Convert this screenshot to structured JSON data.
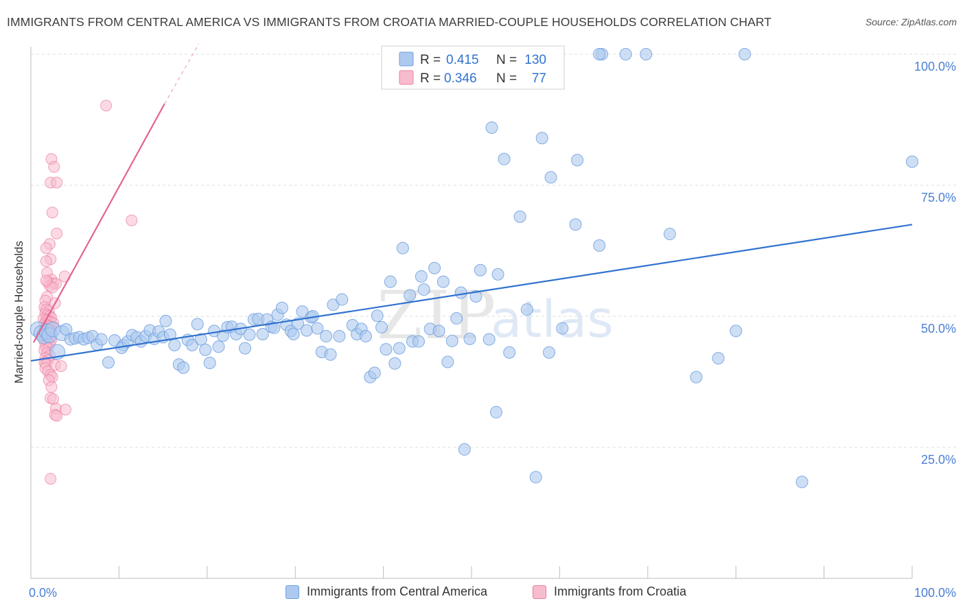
{
  "header": {
    "title": "IMMIGRANTS FROM CENTRAL AMERICA VS IMMIGRANTS FROM CROATIA MARRIED-COUPLE HOUSEHOLDS CORRELATION CHART",
    "source": "Source: ZipAtlas.com"
  },
  "watermark": {
    "zip": "ZIP",
    "atlas": "atlas"
  },
  "colors": {
    "blue_fill": "#aec9ef",
    "blue_stroke": "#6e9fe0",
    "blue_line": "#2f72d0",
    "pink_fill": "#f7bccd",
    "pink_stroke": "#ec7ea0",
    "pink_line": "#e4638f",
    "axis_label": "#4a7fd4",
    "grid": "#dcdcdc"
  },
  "legend_top": {
    "rows": [
      {
        "r_label": "R =",
        "r_value": "0.415",
        "n_label": "N =",
        "n_value": "130",
        "series": "blue"
      },
      {
        "r_label": "R =",
        "r_value": "0.346",
        "n_label": "N =",
        "n_value": "77",
        "series": "pink"
      }
    ]
  },
  "legend_bottom": {
    "items": [
      {
        "label": "Immigrants from Central America",
        "series": "blue"
      },
      {
        "label": "Immigrants from Croatia",
        "series": "pink"
      }
    ]
  },
  "chart_data": {
    "type": "scatter",
    "title": "IMMIGRANTS FROM CENTRAL AMERICA VS IMMIGRANTS FROM CROATIA MARRIED-COUPLE HOUSEHOLDS CORRELATION CHART",
    "xlabel": "",
    "ylabel": "Married-couple Households",
    "xlim": [
      0,
      100
    ],
    "ylim": [
      0,
      100
    ],
    "x_tick_labels": [
      "0.0%",
      "100.0%"
    ],
    "y_tick_labels": [
      {
        "value": 100,
        "label": "100.0%"
      },
      {
        "value": 75,
        "label": "75.0%"
      },
      {
        "value": 50,
        "label": "50.0%"
      },
      {
        "value": 25,
        "label": "25.0%"
      }
    ],
    "series": [
      {
        "name": "Immigrants from Central America",
        "color": "blue",
        "R": 0.415,
        "N": 130,
        "trend": {
          "x0": 0.0,
          "y0": 41.5,
          "x1": 100.0,
          "y1": 67.5
        },
        "points": [
          [
            0.8,
            47.5
          ],
          [
            1.2,
            46.8
          ],
          [
            1.5,
            46.2
          ],
          [
            1.8,
            47.1
          ],
          [
            2.1,
            46.4
          ],
          [
            2.5,
            47.5
          ],
          [
            3.0,
            43.2
          ],
          [
            3.5,
            46.8
          ],
          [
            4.0,
            47.5
          ],
          [
            4.5,
            45.6
          ],
          [
            5.0,
            45.8
          ],
          [
            5.5,
            46.0
          ],
          [
            6.0,
            45.6
          ],
          [
            6.5,
            45.9
          ],
          [
            7.0,
            46.2
          ],
          [
            7.5,
            44.6
          ],
          [
            8.0,
            45.6
          ],
          [
            8.8,
            41.2
          ],
          [
            9.5,
            45.4
          ],
          [
            10.5,
            44.5
          ],
          [
            10.3,
            44.0
          ],
          [
            11.0,
            45.2
          ],
          [
            11.5,
            46.4
          ],
          [
            12.0,
            46.0
          ],
          [
            12.5,
            45.2
          ],
          [
            13.0,
            46.2
          ],
          [
            13.5,
            47.3
          ],
          [
            14.0,
            45.7
          ],
          [
            14.5,
            47.1
          ],
          [
            15.0,
            46.0
          ],
          [
            15.3,
            49.1
          ],
          [
            15.8,
            46.5
          ],
          [
            16.3,
            44.5
          ],
          [
            16.8,
            40.8
          ],
          [
            17.3,
            40.2
          ],
          [
            17.8,
            45.5
          ],
          [
            18.3,
            44.5
          ],
          [
            18.9,
            48.5
          ],
          [
            19.3,
            45.6
          ],
          [
            19.8,
            43.6
          ],
          [
            20.3,
            41.1
          ],
          [
            20.8,
            47.2
          ],
          [
            21.3,
            44.2
          ],
          [
            21.8,
            46.3
          ],
          [
            22.3,
            47.9
          ],
          [
            22.8,
            48.0
          ],
          [
            23.3,
            46.6
          ],
          [
            23.8,
            47.6
          ],
          [
            24.3,
            43.9
          ],
          [
            24.8,
            46.5
          ],
          [
            25.3,
            49.4
          ],
          [
            25.8,
            49.5
          ],
          [
            26.3,
            46.6
          ],
          [
            26.8,
            49.4
          ],
          [
            27.3,
            48.0
          ],
          [
            27.6,
            47.8
          ],
          [
            28.0,
            50.3
          ],
          [
            28.5,
            51.6
          ],
          [
            29.0,
            48.4
          ],
          [
            29.5,
            47.2
          ],
          [
            29.8,
            46.6
          ],
          [
            30.3,
            48.6
          ],
          [
            30.8,
            50.9
          ],
          [
            31.3,
            47.3
          ],
          [
            31.8,
            49.8
          ],
          [
            32.0,
            50.0
          ],
          [
            32.5,
            47.7
          ],
          [
            33.0,
            43.2
          ],
          [
            33.5,
            46.2
          ],
          [
            34.0,
            42.7
          ],
          [
            34.3,
            52.2
          ],
          [
            35.3,
            53.2
          ],
          [
            35.0,
            46.2
          ],
          [
            36.5,
            48.3
          ],
          [
            37.0,
            46.6
          ],
          [
            37.5,
            47.6
          ],
          [
            38.0,
            46.2
          ],
          [
            38.5,
            38.4
          ],
          [
            39.0,
            39.2
          ],
          [
            39.3,
            50.1
          ],
          [
            39.8,
            47.9
          ],
          [
            40.3,
            43.7
          ],
          [
            40.8,
            56.6
          ],
          [
            41.3,
            41.0
          ],
          [
            41.8,
            43.9
          ],
          [
            42.2,
            63.0
          ],
          [
            43.0,
            54.0
          ],
          [
            43.3,
            45.2
          ],
          [
            44.0,
            45.2
          ],
          [
            44.3,
            57.6
          ],
          [
            44.6,
            55.1
          ],
          [
            45.3,
            47.6
          ],
          [
            45.8,
            59.2
          ],
          [
            46.3,
            47.2
          ],
          [
            46.8,
            56.6
          ],
          [
            47.3,
            41.3
          ],
          [
            47.8,
            45.3
          ],
          [
            48.3,
            49.6
          ],
          [
            48.8,
            54.5
          ],
          [
            49.2,
            24.6
          ],
          [
            49.8,
            45.7
          ],
          [
            50.5,
            53.8
          ],
          [
            51.0,
            58.8
          ],
          [
            52.0,
            45.6
          ],
          [
            52.3,
            86.0
          ],
          [
            53.0,
            58.0
          ],
          [
            52.8,
            31.7
          ],
          [
            53.7,
            80.0
          ],
          [
            54.3,
            43.1
          ],
          [
            55.5,
            69.0
          ],
          [
            56.3,
            51.3
          ],
          [
            57.3,
            19.3
          ],
          [
            58.0,
            84.0
          ],
          [
            58.8,
            43.1
          ],
          [
            59.0,
            76.5
          ],
          [
            60.3,
            47.7
          ],
          [
            61.8,
            67.5
          ],
          [
            62.0,
            79.8
          ],
          [
            64.5,
            63.5
          ],
          [
            64.8,
            100.0
          ],
          [
            67.5,
            100.0
          ],
          [
            69.8,
            100.0
          ],
          [
            72.5,
            65.7
          ],
          [
            75.5,
            38.4
          ],
          [
            78.0,
            42.0
          ],
          [
            80.0,
            47.2
          ],
          [
            81.0,
            100.0
          ],
          [
            87.5,
            18.4
          ],
          [
            100.0,
            79.5
          ],
          [
            64.5,
            100.0
          ]
        ]
      },
      {
        "name": "Immigrants from Croatia",
        "color": "pink",
        "R": 0.346,
        "N": 77,
        "trend": {
          "x0": 0.0,
          "y0": 45.0,
          "x1": 15.0,
          "y1": 90.5,
          "dashed_to": {
            "x": 18.9,
            "y": 102.0
          }
        },
        "points": [
          [
            7.6,
            90.2
          ],
          [
            1.4,
            80.0
          ],
          [
            1.7,
            78.5
          ],
          [
            1.3,
            75.5
          ],
          [
            2.0,
            75.5
          ],
          [
            10.5,
            68.3
          ],
          [
            1.5,
            69.8
          ],
          [
            2.0,
            65.8
          ],
          [
            1.2,
            63.8
          ],
          [
            0.8,
            63.0
          ],
          [
            1.3,
            60.9
          ],
          [
            0.8,
            60.5
          ],
          [
            0.9,
            58.3
          ],
          [
            2.9,
            57.6
          ],
          [
            1.4,
            57.0
          ],
          [
            1.0,
            56.5
          ],
          [
            1.6,
            56.3
          ],
          [
            1.9,
            56.2
          ],
          [
            1.2,
            55.8
          ],
          [
            1.5,
            55.5
          ],
          [
            0.9,
            53.7
          ],
          [
            0.7,
            53.0
          ],
          [
            1.8,
            52.5
          ],
          [
            0.6,
            51.7
          ],
          [
            0.8,
            51.3
          ],
          [
            1.1,
            51.0
          ],
          [
            0.7,
            50.5
          ],
          [
            0.9,
            50.2
          ],
          [
            1.2,
            50.0
          ],
          [
            1.4,
            49.7
          ],
          [
            0.5,
            49.5
          ],
          [
            0.8,
            49.3
          ],
          [
            1.0,
            49.1
          ],
          [
            1.3,
            48.9
          ],
          [
            1.6,
            48.7
          ],
          [
            0.6,
            48.5
          ],
          [
            0.9,
            48.3
          ],
          [
            1.2,
            48.1
          ],
          [
            1.5,
            47.9
          ],
          [
            0.7,
            47.7
          ],
          [
            1.0,
            47.5
          ],
          [
            1.3,
            47.3
          ],
          [
            0.6,
            47.1
          ],
          [
            0.9,
            46.9
          ],
          [
            1.2,
            46.7
          ],
          [
            0.5,
            46.5
          ],
          [
            0.8,
            46.2
          ],
          [
            1.1,
            45.9
          ],
          [
            1.4,
            45.6
          ],
          [
            0.6,
            45.3
          ],
          [
            0.9,
            45.0
          ],
          [
            1.2,
            44.7
          ],
          [
            0.7,
            44.3
          ],
          [
            1.0,
            43.9
          ],
          [
            0.6,
            43.5
          ],
          [
            0.9,
            43.0
          ],
          [
            1.2,
            42.5
          ],
          [
            0.7,
            42.0
          ],
          [
            1.0,
            41.6
          ],
          [
            0.6,
            41.2
          ],
          [
            0.8,
            40.8
          ],
          [
            1.8,
            40.7
          ],
          [
            2.5,
            40.5
          ],
          [
            0.7,
            40.1
          ],
          [
            1.0,
            39.5
          ],
          [
            1.3,
            38.8
          ],
          [
            1.5,
            38.4
          ],
          [
            1.1,
            37.8
          ],
          [
            1.4,
            36.5
          ],
          [
            1.3,
            34.4
          ],
          [
            1.6,
            34.2
          ],
          [
            1.9,
            32.4
          ],
          [
            3.0,
            32.2
          ],
          [
            1.8,
            31.2
          ],
          [
            2.0,
            31.0
          ],
          [
            1.3,
            19.0
          ],
          [
            0.8,
            56.8
          ]
        ]
      }
    ]
  }
}
